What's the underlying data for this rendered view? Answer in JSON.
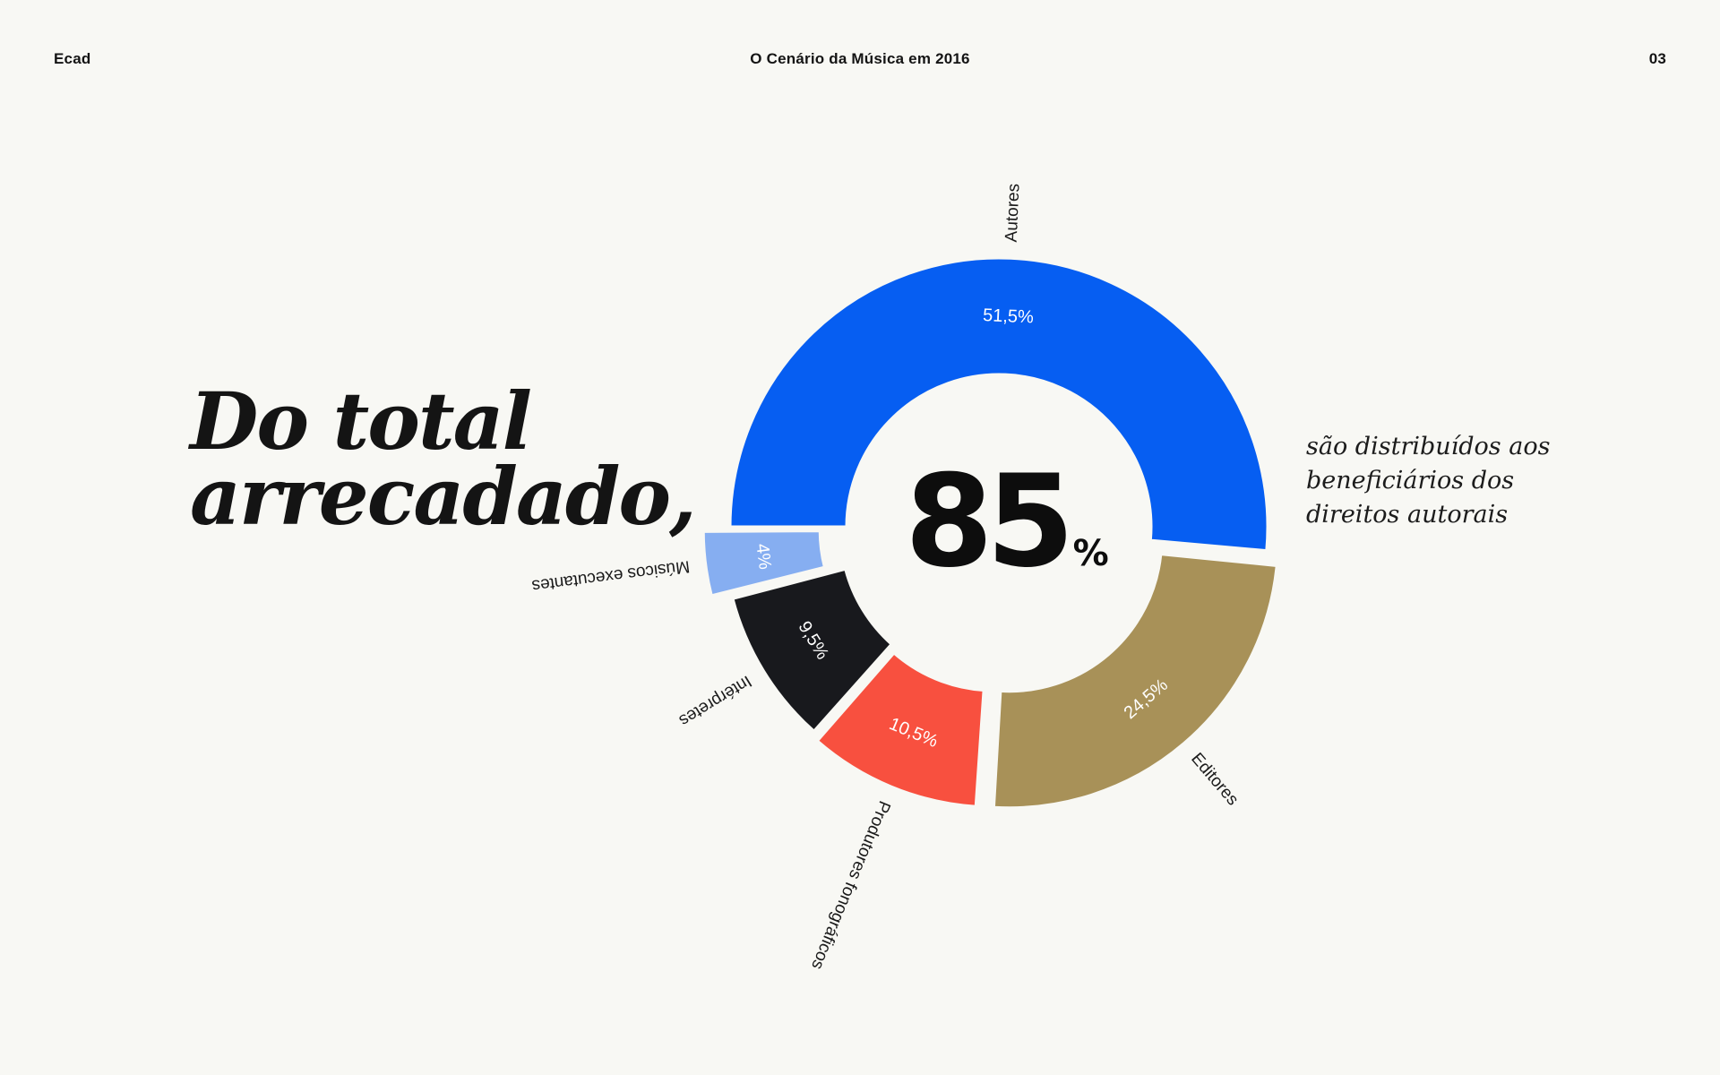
{
  "header": {
    "brand": "Ecad",
    "title": "O Cenário da Música em 2016",
    "page": "03"
  },
  "headline": {
    "line1": "Do total",
    "line2": "arrecadado,"
  },
  "side_note": {
    "line1": "são distribuídos aos",
    "line2": "beneficiários dos",
    "line3": "direitos autorais"
  },
  "center": {
    "value": "85",
    "unit": "%"
  },
  "chart_data": {
    "type": "pie",
    "style": "exploded donut, clockwise from left",
    "title": "",
    "slices": [
      {
        "name": "Autores",
        "value": 51.5,
        "value_label": "51,5%",
        "color": "#065ef2",
        "label_color": "#ffffff"
      },
      {
        "name": "Editores",
        "value": 24.5,
        "value_label": "24,5%",
        "color": "#a89158",
        "label_color": "#ffffff"
      },
      {
        "name": "Produtores fonográficos",
        "value": 10.5,
        "value_label": "10,5%",
        "color": "#f8503f",
        "label_color": "#ffffff"
      },
      {
        "name": "Intérpretes",
        "value": 9.5,
        "value_label": "9,5%",
        "color": "#18191d",
        "label_color": "#ffffff"
      },
      {
        "name": "Músicos executantes",
        "value": 4,
        "value_label": "4%",
        "color": "#86aef1",
        "label_color": "#ffffff"
      }
    ]
  }
}
